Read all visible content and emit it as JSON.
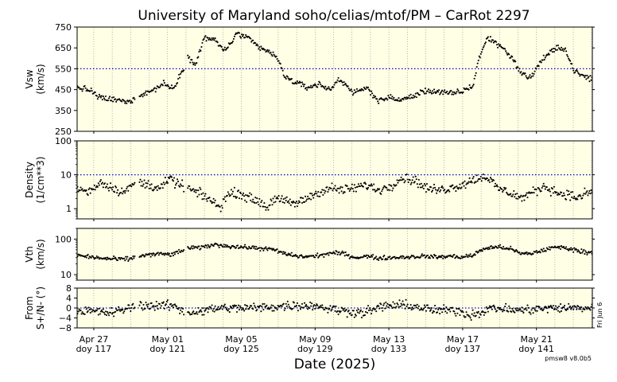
{
  "title": "University of Maryland  soho/celias/mtof/PM – CarRot 2297",
  "xlabel": "Date (2025)",
  "version": "pmsw8 v8.0b5",
  "side_note": "Fri Jun 6",
  "colors": {
    "panel_bg": "#ffffe6",
    "ref_line": "#0000cc",
    "points": "#000000",
    "grid": "#888888"
  },
  "chart_data": [
    {
      "type": "scatter",
      "name": "vsw",
      "ylabel_lines": [
        "Vsw",
        "(km/s)"
      ],
      "yscale": "linear",
      "ylim": [
        250,
        750
      ],
      "yticks": [
        250,
        350,
        450,
        550,
        650,
        750
      ],
      "ytick_labels": [
        "250",
        "350",
        "450",
        "550",
        "650",
        "750"
      ],
      "ref_value": 550,
      "profile": [
        [
          0,
          460
        ],
        [
          1.2,
          445
        ],
        [
          1.7,
          415
        ],
        [
          2.5,
          405
        ],
        [
          3.3,
          400
        ],
        [
          4.3,
          390
        ],
        [
          5.3,
          425
        ],
        [
          6.3,
          445
        ],
        [
          7.3,
          480
        ],
        [
          7.8,
          460
        ],
        [
          8.1,
          455
        ],
        [
          9.3,
          600
        ],
        [
          10.0,
          580
        ],
        [
          10.7,
          700
        ],
        [
          11.5,
          690
        ],
        [
          12.3,
          640
        ],
        [
          12.6,
          650
        ],
        [
          13.5,
          720
        ],
        [
          14.5,
          690
        ],
        [
          15.3,
          650
        ],
        [
          16.2,
          630
        ],
        [
          16.8,
          600
        ],
        [
          17.5,
          510
        ],
        [
          18.5,
          480
        ],
        [
          19.3,
          460
        ],
        [
          20.3,
          475
        ],
        [
          21.3,
          450
        ],
        [
          22.0,
          500
        ],
        [
          22.5,
          480
        ],
        [
          23.3,
          430
        ],
        [
          24.3,
          460
        ],
        [
          25.3,
          400
        ],
        [
          26.3,
          410
        ],
        [
          27.3,
          400
        ],
        [
          28.3,
          420
        ],
        [
          29.3,
          445
        ],
        [
          30.3,
          440
        ],
        [
          31.3,
          430
        ],
        [
          32.3,
          440
        ],
        [
          33.3,
          470
        ],
        [
          33.7,
          590
        ],
        [
          34.5,
          700
        ],
        [
          35.3,
          670
        ],
        [
          36.0,
          640
        ],
        [
          36.8,
          580
        ],
        [
          37.3,
          530
        ],
        [
          37.8,
          510
        ],
        [
          38.3,
          520
        ],
        [
          39.0,
          590
        ],
        [
          39.8,
          630
        ],
        [
          40.5,
          650
        ],
        [
          41.0,
          650
        ],
        [
          41.3,
          600
        ],
        [
          41.8,
          540
        ],
        [
          42.3,
          520
        ],
        [
          42.8,
          510
        ],
        [
          43.3,
          500
        ]
      ],
      "gaps": [
        [
          4.9,
          5.2
        ],
        [
          9.0,
          9.25
        ]
      ],
      "noise": 12
    },
    {
      "type": "scatter",
      "name": "density",
      "ylabel_lines": [
        "Density",
        "(1/cm**3)"
      ],
      "yscale": "log",
      "ylim": [
        0.5,
        100
      ],
      "yticks": [
        1,
        10,
        100
      ],
      "ytick_labels": [
        "1",
        "10",
        "100"
      ],
      "ref_value": 10,
      "profile": [
        [
          0,
          4
        ],
        [
          1,
          3
        ],
        [
          2,
          6
        ],
        [
          3,
          4
        ],
        [
          4,
          3
        ],
        [
          5,
          6
        ],
        [
          6,
          5
        ],
        [
          7,
          4
        ],
        [
          8,
          8
        ],
        [
          8.1,
          6
        ],
        [
          9.3,
          4
        ],
        [
          10,
          3
        ],
        [
          11,
          2
        ],
        [
          12,
          1
        ],
        [
          12.6,
          2.5
        ],
        [
          13.5,
          3
        ],
        [
          14.5,
          2
        ],
        [
          15.5,
          1.5
        ],
        [
          16,
          1
        ],
        [
          16.5,
          2
        ],
        [
          17.5,
          1.6
        ],
        [
          18.5,
          1.4
        ],
        [
          19.3,
          2
        ],
        [
          20.3,
          3
        ],
        [
          21.3,
          4
        ],
        [
          22.3,
          3.5
        ],
        [
          23.3,
          4
        ],
        [
          24.3,
          5
        ],
        [
          25.3,
          3.5
        ],
        [
          26.3,
          4.5
        ],
        [
          27.3,
          8
        ],
        [
          28.3,
          7
        ],
        [
          29.3,
          4
        ],
        [
          30.3,
          3.5
        ],
        [
          31.3,
          4
        ],
        [
          32.3,
          5
        ],
        [
          33.3,
          7
        ],
        [
          34.3,
          9
        ],
        [
          35.3,
          4
        ],
        [
          36.3,
          3
        ],
        [
          37.3,
          2
        ],
        [
          38.3,
          3
        ],
        [
          39.3,
          4.5
        ],
        [
          40.3,
          3
        ],
        [
          41.3,
          2.5
        ],
        [
          42.3,
          2
        ],
        [
          42.8,
          3
        ],
        [
          43.3,
          3
        ]
      ],
      "gaps": [
        [
          4.9,
          5.2
        ],
        [
          9.0,
          9.25
        ]
      ],
      "noise": 0.12
    },
    {
      "type": "scatter",
      "name": "vth",
      "ylabel_lines": [
        "Vth",
        "(km/s)"
      ],
      "yscale": "log",
      "ylim": [
        7,
        200
      ],
      "yticks": [
        10,
        100
      ],
      "ytick_labels": [
        "10",
        "100"
      ],
      "ref_value": null,
      "profile": [
        [
          0,
          35
        ],
        [
          1.5,
          30
        ],
        [
          2.5,
          28
        ],
        [
          3.5,
          27
        ],
        [
          4.5,
          28
        ],
        [
          5.5,
          35
        ],
        [
          7,
          38
        ],
        [
          8.1,
          37
        ],
        [
          9.3,
          55
        ],
        [
          10.5,
          58
        ],
        [
          11.5,
          70
        ],
        [
          13.5,
          60
        ],
        [
          15.5,
          55
        ],
        [
          16.5,
          50
        ],
        [
          17.5,
          38
        ],
        [
          18.5,
          33
        ],
        [
          19.3,
          32
        ],
        [
          20.3,
          34
        ],
        [
          21.3,
          40
        ],
        [
          22.3,
          40
        ],
        [
          23.3,
          30
        ],
        [
          24.3,
          33
        ],
        [
          25.3,
          29
        ],
        [
          26.3,
          30
        ],
        [
          27.3,
          31
        ],
        [
          28.3,
          32
        ],
        [
          29.3,
          33
        ],
        [
          30.3,
          31
        ],
        [
          31.3,
          33
        ],
        [
          32.3,
          31
        ],
        [
          33.3,
          35
        ],
        [
          34.3,
          55
        ],
        [
          35.3,
          60
        ],
        [
          36.3,
          55
        ],
        [
          37.3,
          38
        ],
        [
          38.3,
          40
        ],
        [
          39.3,
          50
        ],
        [
          40.3,
          60
        ],
        [
          41.3,
          55
        ],
        [
          42.3,
          45
        ],
        [
          43.3,
          42
        ]
      ],
      "gaps": [
        [
          4.9,
          5.2
        ],
        [
          9.0,
          9.25
        ]
      ],
      "noise": 0.05
    },
    {
      "type": "scatter",
      "name": "flow_angle",
      "ylabel_lines": [
        "From",
        "S+/N- (°)"
      ],
      "yscale": "linear",
      "ylim": [
        -8,
        8
      ],
      "yticks": [
        -8,
        -4,
        0,
        4,
        8
      ],
      "ytick_labels": [
        "−8",
        "−4",
        "0",
        "4",
        "8"
      ],
      "ref_value": 0,
      "profile": [
        [
          0,
          -1
        ],
        [
          3,
          -2
        ],
        [
          5,
          1
        ],
        [
          8,
          1
        ],
        [
          9.3,
          -2
        ],
        [
          12,
          0
        ],
        [
          15,
          0
        ],
        [
          18,
          1
        ],
        [
          20,
          1
        ],
        [
          22,
          -1
        ],
        [
          24,
          -2
        ],
        [
          26,
          1
        ],
        [
          28,
          1
        ],
        [
          30,
          -1
        ],
        [
          32,
          -1
        ],
        [
          33,
          -3
        ],
        [
          35,
          0
        ],
        [
          37,
          -1
        ],
        [
          40,
          0
        ],
        [
          43.3,
          0
        ]
      ],
      "gaps": [
        [
          4.9,
          5.2
        ],
        [
          9.0,
          9.25
        ]
      ],
      "noise": 1.6
    }
  ],
  "x_axis": {
    "range_days": [
      0,
      43.3
    ],
    "ticks": [
      {
        "day": 1.4,
        "date": "Apr 27",
        "doy": "doy 117"
      },
      {
        "day": 7.6,
        "date": "May 01",
        "doy": "doy 121"
      },
      {
        "day": 13.8,
        "date": "May 05",
        "doy": "doy 125"
      },
      {
        "day": 20.0,
        "date": "May 09",
        "doy": "doy 129"
      },
      {
        "day": 26.2,
        "date": "May 13",
        "doy": "doy 133"
      },
      {
        "day": 32.4,
        "date": "May 17",
        "doy": "doy 137"
      },
      {
        "day": 38.6,
        "date": "May 21",
        "doy": "doy 141"
      }
    ],
    "minor_step": 1.55
  }
}
